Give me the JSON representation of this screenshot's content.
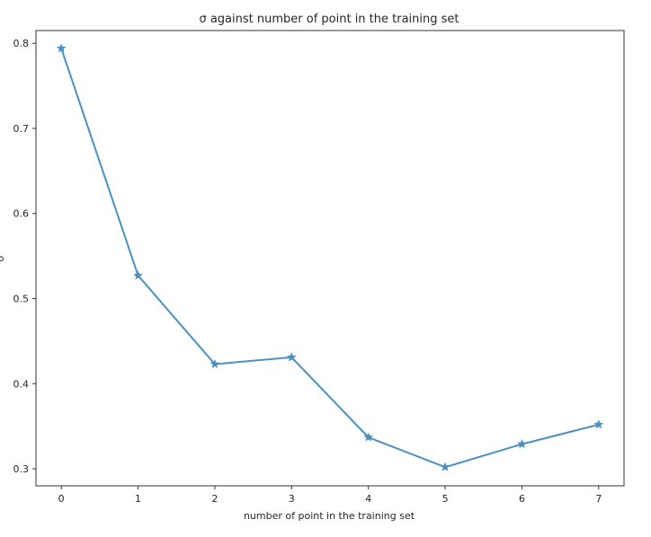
{
  "chart_data": {
    "type": "line",
    "title": "σ against number of point in the training set",
    "xlabel": "number of point in the training set",
    "ylabel": "σ",
    "x": [
      0,
      1,
      2,
      3,
      4,
      5,
      6,
      7
    ],
    "series": [
      {
        "values": [
          0.794,
          0.527,
          0.423,
          0.431,
          0.337,
          0.302,
          0.329,
          0.352
        ],
        "color": "#4a90c0",
        "marker": "star"
      }
    ],
    "xlim": [
      -0.33,
      7.33
    ],
    "ylim": [
      0.28,
      0.815
    ],
    "xticks": [
      "0",
      "1",
      "2",
      "3",
      "4",
      "5",
      "6",
      "7"
    ],
    "yticks": [
      "0.3",
      "0.4",
      "0.5",
      "0.6",
      "0.7",
      "0.8"
    ],
    "ytick_values": [
      0.3,
      0.4,
      0.5,
      0.6,
      0.7,
      0.8
    ],
    "grid": false,
    "legend": "none"
  }
}
